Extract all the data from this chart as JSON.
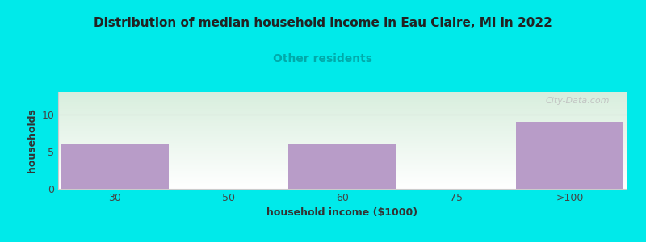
{
  "title": "Distribution of median household income in Eau Claire, MI in 2022",
  "subtitle": "Other residents",
  "xlabel": "household income ($1000)",
  "ylabel": "households",
  "categories": [
    "30",
    "50",
    "60",
    "75",
    ">100"
  ],
  "values": [
    6,
    0,
    6,
    0,
    9
  ],
  "bar_color": "#b89cc8",
  "ylim": [
    0,
    13
  ],
  "yticks": [
    0,
    5,
    10
  ],
  "background_color": "#00eaea",
  "plot_bg_color_topleft": "#d8eedd",
  "plot_bg_color_white": "#ffffff",
  "title_fontsize": 11,
  "subtitle_fontsize": 10,
  "subtitle_color": "#00aaaa",
  "axis_label_fontsize": 9,
  "tick_label_fontsize": 9,
  "watermark": "City-Data.com"
}
